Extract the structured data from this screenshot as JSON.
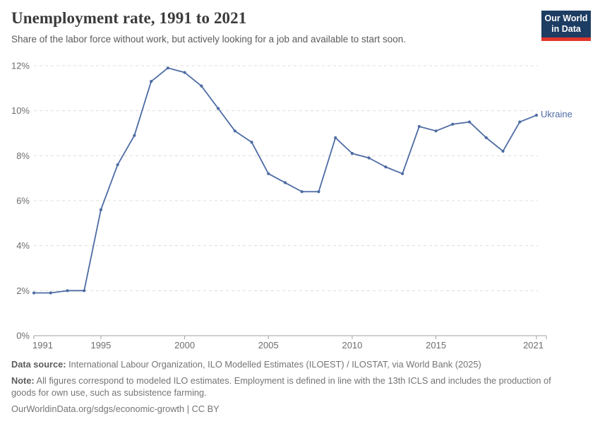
{
  "logo": {
    "line1": "Our World",
    "line2": "in Data",
    "bg_color": "#1d3d63",
    "accent_color": "#e0362c"
  },
  "chart_data": {
    "type": "line",
    "title": "Unemployment rate, 1991 to 2021",
    "subtitle": "Share of the labor force without work, but actively looking for a job and available to start soon.",
    "x": [
      1991,
      1992,
      1993,
      1994,
      1995,
      1996,
      1997,
      1998,
      1999,
      2000,
      2001,
      2002,
      2003,
      2004,
      2005,
      2006,
      2007,
      2008,
      2009,
      2010,
      2011,
      2012,
      2013,
      2014,
      2015,
      2016,
      2017,
      2018,
      2019,
      2020,
      2021
    ],
    "series": [
      {
        "name": "Ukraine",
        "color": "#4d6ba3",
        "values": [
          1.9,
          1.9,
          2.0,
          2.0,
          5.6,
          7.6,
          8.9,
          11.3,
          11.9,
          11.7,
          11.1,
          10.1,
          9.1,
          8.6,
          7.2,
          6.8,
          6.4,
          6.4,
          8.8,
          8.1,
          7.9,
          7.5,
          7.2,
          9.3,
          9.1,
          9.4,
          9.5,
          8.8,
          8.2,
          9.5,
          9.8
        ]
      }
    ],
    "xlim": [
      1991,
      2021
    ],
    "ylim": [
      0,
      12
    ],
    "xticks": [
      1991,
      1995,
      2000,
      2005,
      2010,
      2015,
      2021
    ],
    "yticks": [
      0,
      2,
      4,
      6,
      8,
      10,
      12
    ],
    "ytick_suffix": "%",
    "grid": "horizontal-dashed",
    "gridline_color": "#dcdcdc",
    "axis_color": "#a1a1a1",
    "legend": "end-of-line-label"
  },
  "footer": {
    "data_source_label": "Data source:",
    "data_source_text": " International Labour Organization, ILO Modelled Estimates (ILOEST) / ILOSTAT, via World Bank (2025)",
    "note_label": "Note:",
    "note_text": " All figures correspond to modeled ILO estimates. Employment is defined in line with the 13th ICLS and includes the production of goods for own use, such as subsistence farming.",
    "url": "OurWorldinData.org/sdgs/economic-growth",
    "license": " | CC BY"
  }
}
